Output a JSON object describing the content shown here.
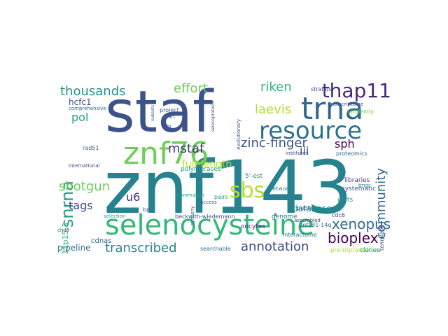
{
  "word_cloud": {
    "background": "#ffffff",
    "words": [
      {
        "text": "staf",
        "color": "#3b528b"
      },
      {
        "text": "znf143",
        "color": "#26828e"
      },
      {
        "text": "selenocysteine",
        "color": "#35b779"
      },
      {
        "text": "trna",
        "color": "#31688e"
      },
      {
        "text": "resource",
        "color": "#2c728e"
      },
      {
        "text": "znf76",
        "color": "#6ece58"
      },
      {
        "text": "thap11",
        "color": "#482878"
      },
      {
        "text": "snrna",
        "color": "#1f9e89"
      },
      {
        "text": "xenopus",
        "color": "#31688e"
      },
      {
        "text": "bioplex",
        "color": "#440154"
      },
      {
        "text": "annotation",
        "color": "#3e4a89"
      },
      {
        "text": "transcribed",
        "color": "#26828e"
      },
      {
        "text": "sbs",
        "color": "#b5de2b"
      },
      {
        "text": "zinc-finger",
        "color": "#3b528b"
      },
      {
        "text": "mstaf",
        "color": "#443983"
      },
      {
        "text": "thousands",
        "color": "#21918c"
      },
      {
        "text": "effort",
        "color": "#6ece58"
      },
      {
        "text": "riken",
        "color": "#35b779"
      },
      {
        "text": "laevis",
        "color": "#b5de2b"
      },
      {
        "text": "pol",
        "color": "#1f9e89"
      },
      {
        "text": "shotgun",
        "color": "#6ece58"
      },
      {
        "text": "tags",
        "color": "#3e4a89"
      },
      {
        "text": "u6",
        "color": "#482878"
      },
      {
        "text": "community",
        "color": "#31688e"
      },
      {
        "text": "full-length",
        "color": "#b5de2b"
      },
      {
        "text": "sph",
        "color": "#440154"
      },
      {
        "text": "iii",
        "color": "#3b528b"
      },
      {
        "text": "pipeline",
        "color": "#2c728e"
      },
      {
        "text": "database",
        "color": "#21918c"
      },
      {
        "text": "hcfc1",
        "color": "#3e4a89"
      },
      {
        "text": "11p15.3",
        "color": "#35b779"
      },
      {
        "text": "5'-est",
        "color": "#26828e"
      },
      {
        "text": "polymerases",
        "color": "#1f9e89"
      },
      {
        "text": "rad51",
        "color": "#3b528b"
      },
      {
        "text": "cdnas",
        "color": "#31688e"
      },
      {
        "text": "beckwith-wiedemann",
        "color": "#3e4a89"
      },
      {
        "text": "oocytes",
        "color": "#482878"
      },
      {
        "text": "genome",
        "color": "#2c728e"
      },
      {
        "text": "znf131-14q",
        "color": "#31688e"
      },
      {
        "text": "units",
        "color": "#21918c"
      },
      {
        "text": "systematic",
        "color": "#3b528b"
      },
      {
        "text": "libraries",
        "color": "#443983"
      },
      {
        "text": "networks",
        "color": "#26828e"
      },
      {
        "text": "interactome",
        "color": "#2c728e"
      },
      {
        "text": "proteomics",
        "color": "#31688e"
      },
      {
        "text": "transcriptome",
        "color": "#3e4a89"
      },
      {
        "text": "tandemly",
        "color": "#6ece58"
      },
      {
        "text": "preimplantation",
        "color": "#b5de2b"
      },
      {
        "text": "clones",
        "color": "#21918c"
      },
      {
        "text": "searchable",
        "color": "#2c728e"
      },
      {
        "text": "selenoproteins",
        "color": "#3e4a89"
      },
      {
        "text": "evolutionary",
        "color": "#3b528b"
      },
      {
        "text": "subsets",
        "color": "#3b528b"
      },
      {
        "text": "international",
        "color": "#3e4a89"
      },
      {
        "text": "mammalian",
        "color": "#1f9e89"
      },
      {
        "text": "synteny",
        "color": "#31688e"
      },
      {
        "text": "institutes",
        "color": "#3e4a89"
      },
      {
        "text": "comprehensive",
        "color": "#31688e"
      },
      {
        "text": "project",
        "color": "#3b528b"
      },
      {
        "text": "start",
        "color": "#31688e"
      },
      {
        "text": "zfp",
        "color": "#3e4a89"
      },
      {
        "text": "public",
        "color": "#3b528b"
      },
      {
        "text": "access",
        "color": "#3e4a89"
      },
      {
        "text": "pairs",
        "color": "#21918c"
      },
      {
        "text": "bp",
        "color": "#3b528b"
      },
      {
        "text": "assembled",
        "color": "#3e4a89"
      },
      {
        "text": "cdc6",
        "color": "#3b528b"
      },
      {
        "text": "chd8",
        "color": "#3e4a89"
      },
      {
        "text": "selection",
        "color": "#1f9e89"
      },
      {
        "text": "template",
        "color": "#3b528b"
      },
      {
        "text": "strands",
        "color": "#3b528b"
      },
      {
        "text": "tmgc",
        "color": "#26828e"
      }
    ]
  }
}
